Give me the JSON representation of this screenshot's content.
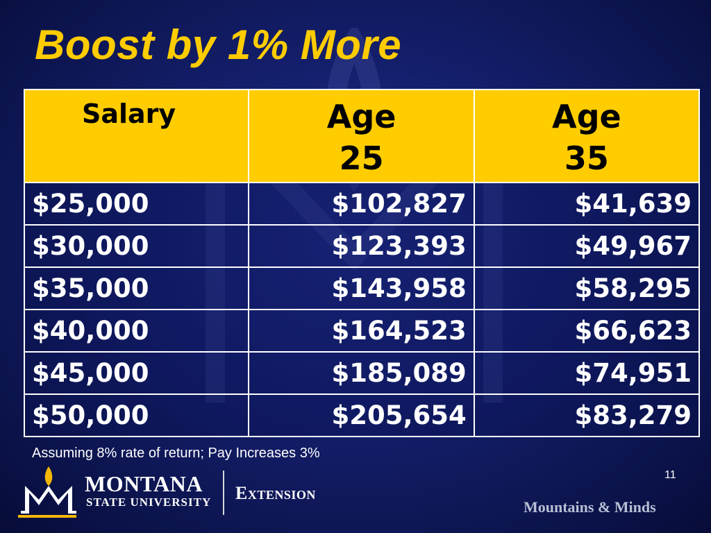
{
  "slide": {
    "title": "Boost by 1% More",
    "footnote": "Assuming 8% rate of return; Pay Increases 3%",
    "page_number": "11"
  },
  "table": {
    "headers": {
      "salary": "Salary",
      "age25_line1": "Age",
      "age25_line2": "25",
      "age35_line1": "Age",
      "age35_line2": "35"
    },
    "rows": [
      {
        "salary": "$25,000",
        "age25": "$102,827",
        "age35": "$41,639"
      },
      {
        "salary": "$30,000",
        "age25": "$123,393",
        "age35": "$49,967"
      },
      {
        "salary": "$35,000",
        "age25": "$143,958",
        "age35": "$58,295"
      },
      {
        "salary": "$40,000",
        "age25": "$164,523",
        "age35": "$66,623"
      },
      {
        "salary": "$45,000",
        "age25": "$185,089",
        "age35": "$74,951"
      },
      {
        "salary": "$50,000",
        "age25": "$205,654",
        "age35": "$83,279"
      }
    ]
  },
  "branding": {
    "logo_name": "MONTANA",
    "logo_sub": "STATE UNIVERSITY",
    "logo_ext": "Extension",
    "tagline": "Mountains & Minds"
  },
  "colors": {
    "background": "#15206e",
    "header_fill": "#ffcc00",
    "title": "#ffcc00",
    "text": "#ffffff"
  }
}
